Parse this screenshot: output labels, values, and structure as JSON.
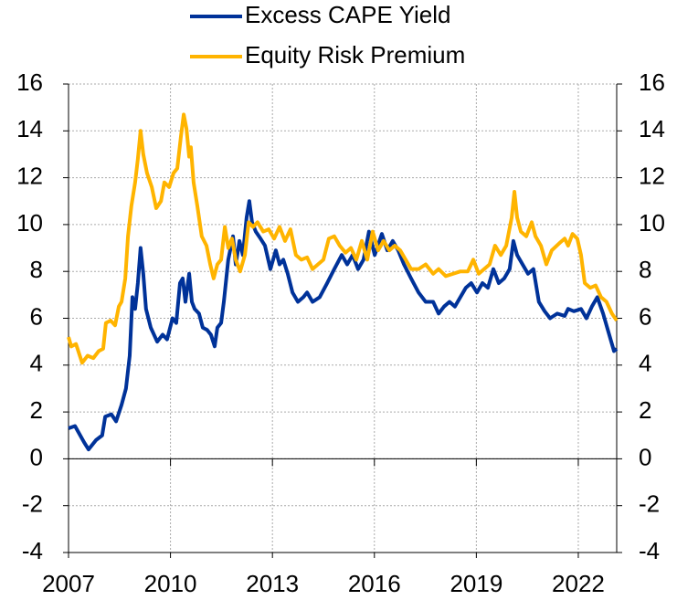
{
  "chart_data": {
    "type": "line",
    "xlim": [
      2007,
      2023.13
    ],
    "xticks": [
      2007,
      2010,
      2013,
      2016,
      2019,
      2022
    ],
    "ylim": [
      -4,
      16
    ],
    "yticks": [
      -4,
      -2,
      0,
      2,
      4,
      6,
      8,
      10,
      12,
      14,
      16
    ],
    "y2lim": [
      -4,
      16
    ],
    "y2ticks": [
      -4,
      -2,
      0,
      2,
      4,
      6,
      8,
      10,
      12,
      14,
      16
    ],
    "grid": true,
    "legend": "top",
    "series": [
      {
        "name": "Excess CAPE Yield",
        "color": "#003299",
        "x": [
          2007.0,
          2007.19,
          2007.46,
          2007.59,
          2007.81,
          2007.99,
          2008.08,
          2008.26,
          2008.4,
          2008.56,
          2008.69,
          2008.8,
          2008.88,
          2008.96,
          2009.04,
          2009.12,
          2009.2,
          2009.28,
          2009.42,
          2009.61,
          2009.77,
          2009.9,
          2010.06,
          2010.17,
          2010.28,
          2010.36,
          2010.44,
          2010.55,
          2010.63,
          2010.71,
          2010.84,
          2010.95,
          2011.08,
          2011.19,
          2011.3,
          2011.38,
          2011.49,
          2011.57,
          2011.7,
          2011.84,
          2011.92,
          2012.03,
          2012.13,
          2012.24,
          2012.32,
          2012.4,
          2012.51,
          2012.65,
          2012.78,
          2012.94,
          2013.1,
          2013.21,
          2013.32,
          2013.45,
          2013.59,
          2013.75,
          2013.91,
          2014.02,
          2014.18,
          2014.39,
          2014.61,
          2014.82,
          2015.04,
          2015.2,
          2015.36,
          2015.52,
          2015.68,
          2015.84,
          2016.01,
          2016.22,
          2016.38,
          2016.54,
          2016.7,
          2016.87,
          2017.08,
          2017.3,
          2017.51,
          2017.73,
          2017.89,
          2018.05,
          2018.21,
          2018.37,
          2018.53,
          2018.69,
          2018.85,
          2019.02,
          2019.18,
          2019.34,
          2019.5,
          2019.66,
          2019.82,
          2019.98,
          2020.09,
          2020.2,
          2020.36,
          2020.52,
          2020.68,
          2020.84,
          2021.01,
          2021.17,
          2021.38,
          2021.6,
          2021.7,
          2021.87,
          2022.08,
          2022.24,
          2022.4,
          2022.56,
          2022.73,
          2022.89,
          2023.05,
          2023.13
        ],
        "values": [
          1.3,
          1.4,
          0.7,
          0.4,
          0.8,
          1.0,
          1.8,
          1.9,
          1.6,
          2.3,
          3.0,
          4.4,
          6.9,
          6.4,
          7.5,
          9.0,
          7.9,
          6.4,
          5.6,
          5.0,
          5.3,
          5.1,
          6.0,
          5.8,
          7.5,
          7.7,
          6.7,
          7.9,
          6.7,
          6.4,
          6.2,
          5.6,
          5.5,
          5.3,
          4.8,
          5.6,
          5.8,
          6.7,
          8.5,
          9.5,
          8.3,
          9.3,
          8.7,
          10.3,
          11.0,
          10.1,
          9.7,
          9.4,
          9.1,
          8.1,
          8.9,
          8.3,
          8.5,
          7.9,
          7.1,
          6.7,
          6.9,
          7.1,
          6.7,
          6.9,
          7.5,
          8.1,
          8.7,
          8.3,
          8.7,
          8.1,
          8.5,
          9.7,
          8.7,
          9.6,
          8.9,
          9.3,
          8.9,
          8.3,
          7.7,
          7.1,
          6.7,
          6.7,
          6.2,
          6.5,
          6.7,
          6.5,
          6.9,
          7.3,
          7.5,
          7.1,
          7.5,
          7.3,
          8.1,
          7.5,
          7.7,
          8.1,
          9.3,
          8.7,
          8.3,
          7.9,
          8.1,
          6.7,
          6.3,
          6.0,
          6.2,
          6.1,
          6.4,
          6.3,
          6.4,
          6.0,
          6.5,
          6.9,
          6.2,
          5.4,
          4.6,
          4.7
        ]
      },
      {
        "name": "Equity Risk Premium",
        "color": "#ffb400",
        "x": [
          2007.0,
          2007.08,
          2007.22,
          2007.4,
          2007.56,
          2007.73,
          2007.89,
          2008.02,
          2008.1,
          2008.24,
          2008.37,
          2008.48,
          2008.56,
          2008.67,
          2008.75,
          2008.85,
          2008.96,
          2009.04,
          2009.12,
          2009.2,
          2009.31,
          2009.45,
          2009.58,
          2009.72,
          2009.82,
          2009.96,
          2010.09,
          2010.2,
          2010.31,
          2010.39,
          2010.47,
          2010.55,
          2010.6,
          2010.68,
          2010.79,
          2010.92,
          2011.06,
          2011.17,
          2011.27,
          2011.38,
          2011.49,
          2011.6,
          2011.7,
          2011.81,
          2011.92,
          2012.05,
          2012.19,
          2012.3,
          2012.43,
          2012.56,
          2012.73,
          2012.89,
          2013.05,
          2013.21,
          2013.37,
          2013.53,
          2013.69,
          2013.85,
          2014.02,
          2014.18,
          2014.34,
          2014.5,
          2014.66,
          2014.82,
          2014.98,
          2015.15,
          2015.31,
          2015.47,
          2015.63,
          2015.79,
          2015.95,
          2016.11,
          2016.27,
          2016.44,
          2016.6,
          2016.76,
          2016.92,
          2017.08,
          2017.3,
          2017.51,
          2017.73,
          2017.89,
          2018.1,
          2018.32,
          2018.53,
          2018.75,
          2018.91,
          2019.07,
          2019.23,
          2019.39,
          2019.55,
          2019.72,
          2019.88,
          2020.04,
          2020.12,
          2020.2,
          2020.31,
          2020.47,
          2020.63,
          2020.74,
          2020.9,
          2021.06,
          2021.22,
          2021.44,
          2021.6,
          2021.7,
          2021.83,
          2021.97,
          2022.08,
          2022.19,
          2022.35,
          2022.51,
          2022.67,
          2022.83,
          2022.99,
          2023.13
        ],
        "values": [
          5.2,
          4.8,
          4.9,
          4.1,
          4.4,
          4.3,
          4.6,
          4.7,
          5.8,
          5.9,
          5.7,
          6.5,
          6.7,
          7.7,
          9.5,
          10.8,
          11.8,
          12.8,
          14.0,
          13.0,
          12.2,
          11.6,
          10.7,
          11.0,
          11.8,
          11.6,
          12.2,
          12.4,
          13.8,
          14.7,
          14.1,
          12.9,
          13.3,
          11.8,
          10.8,
          9.5,
          9.1,
          8.3,
          7.7,
          8.3,
          8.5,
          9.9,
          9.0,
          9.4,
          8.5,
          8.0,
          8.7,
          10.1,
          9.9,
          10.1,
          9.7,
          9.8,
          9.4,
          9.9,
          9.3,
          9.8,
          8.7,
          8.5,
          8.6,
          8.1,
          8.3,
          8.5,
          9.4,
          9.5,
          9.1,
          8.8,
          9.0,
          8.5,
          9.3,
          8.5,
          9.7,
          8.9,
          9.3,
          8.9,
          9.1,
          8.9,
          8.5,
          8.1,
          8.1,
          8.3,
          7.9,
          8.1,
          7.8,
          7.9,
          8.0,
          8.0,
          8.5,
          7.9,
          8.1,
          8.3,
          9.1,
          8.7,
          9.1,
          10.3,
          11.4,
          10.3,
          9.7,
          9.5,
          10.1,
          9.5,
          9.1,
          8.3,
          8.9,
          9.2,
          9.4,
          9.1,
          9.6,
          9.4,
          8.7,
          7.5,
          7.3,
          7.4,
          6.9,
          6.7,
          6.2,
          5.9
        ]
      }
    ]
  }
}
